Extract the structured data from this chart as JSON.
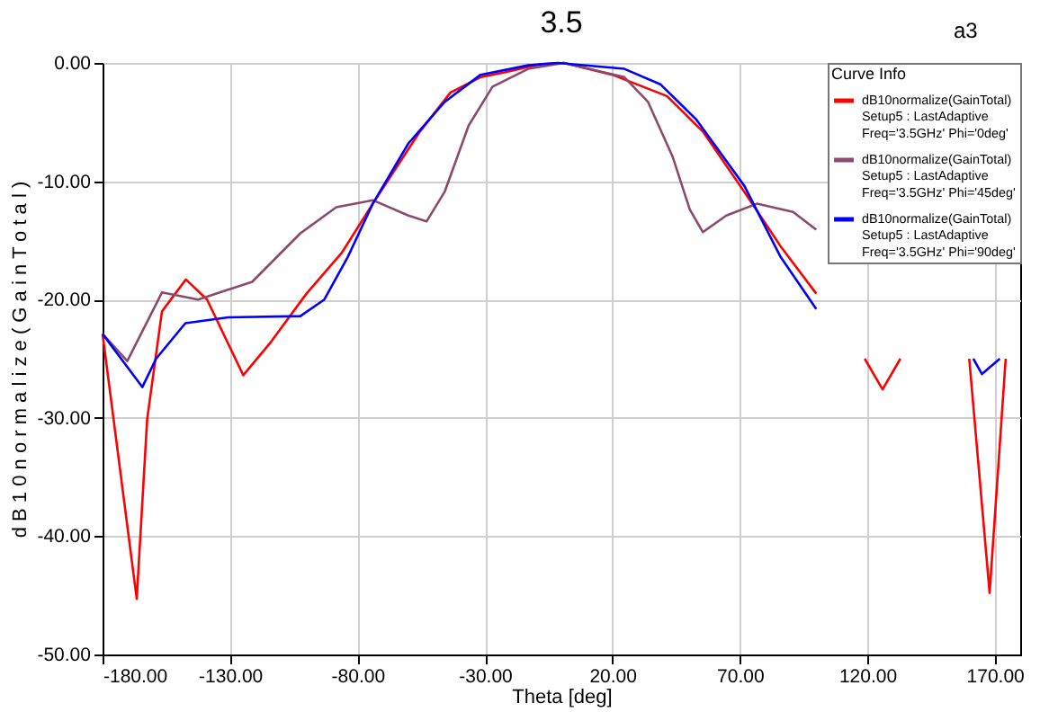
{
  "chart_data": {
    "type": "line",
    "title": "3.5",
    "xlabel": "Theta [deg]",
    "ylabel": "d B 1 0 n o r m a l i z e ( G a i n T o t a l )",
    "legend_title": "Curve Info",
    "legend": "top right",
    "grid": true,
    "line_style": "solid",
    "marker": "none",
    "xlim": [
      -180,
      180
    ],
    "ylim": [
      -50,
      0
    ],
    "xticks": [
      {
        "value": -180,
        "label": "-180.00"
      },
      {
        "value": -130,
        "label": "-130.00"
      },
      {
        "value": -80,
        "label": "-80.00"
      },
      {
        "value": -30,
        "label": "-30.00"
      },
      {
        "value": 20,
        "label": "20.00"
      },
      {
        "value": 70,
        "label": "70.00"
      },
      {
        "value": 120,
        "label": "120.00"
      },
      {
        "value": 170,
        "label": "170.00"
      }
    ],
    "yticks": [
      {
        "value": 0,
        "label": "0.00"
      },
      {
        "value": -10,
        "label": "-10.00"
      },
      {
        "value": -20,
        "label": "-20.00"
      },
      {
        "value": -30,
        "label": "-30.00"
      },
      {
        "value": -40,
        "label": "-40.00"
      },
      {
        "value": -50,
        "label": "-50.00"
      }
    ],
    "annotations": [
      "a3"
    ],
    "series": [
      {
        "name": "dB10normalize(GainTotal)\nSetup5 : LastAdaptive\nFreq='3.5GHz' Phi='0deg'",
        "color": "#ff0000",
        "x": [
          -180,
          -166.6,
          -162.5,
          -156.7,
          -147.3,
          -139,
          -124.8,
          -114,
          -100,
          -86,
          -74,
          -55.5,
          -43.5,
          -31.7,
          -22.3,
          -8,
          1,
          20,
          41.4,
          55.5,
          71.8,
          86,
          100,
          110,
          119,
          126,
          133,
          145,
          160,
          168,
          174.3
        ],
        "values": [
          -22.9,
          -45.3,
          -30.1,
          -21,
          -18.3,
          -20,
          -26.4,
          -23.6,
          -19.5,
          -16,
          -11.9,
          -5.8,
          -2.5,
          -1.2,
          -0.8,
          -0.1,
          0,
          -1,
          -2.8,
          -5.8,
          -10.9,
          -15.5,
          -19.5,
          null,
          -25,
          -27.6,
          -25,
          null,
          -25,
          -44.8,
          -25
        ]
      },
      {
        "name": "dB10normalize(GainTotal)\nSetup5 : LastAdaptive\nFreq='3.5GHz' Phi='45deg'",
        "color": "#8b4a6b",
        "x": [
          -180,
          -170.3,
          -156.7,
          -142.5,
          -121.3,
          -102.4,
          -88.3,
          -74,
          -60,
          -52.9,
          -45.8,
          -36.4,
          -27,
          -13,
          1,
          24.7,
          34,
          43.6,
          50.4,
          55.5,
          64.7,
          76.7,
          90.9,
          100
        ],
        "values": [
          -22.9,
          -25.2,
          -19.4,
          -20,
          -18.5,
          -14.4,
          -12.2,
          -11.6,
          -12.9,
          -13.4,
          -10.9,
          -5.3,
          -2,
          -0.5,
          0,
          -1.2,
          -3.3,
          -7.9,
          -12.4,
          -14.3,
          -12.9,
          -11.9,
          -12.6,
          -14.1
        ]
      },
      {
        "name": "dB10normalize(GainTotal)\nSetup5 : LastAdaptive\nFreq='3.5GHz' Phi='90deg'",
        "color": "#0000ff",
        "x": [
          -180,
          -164.4,
          -159,
          -147.5,
          -130.7,
          -102.4,
          -93,
          -83.8,
          -74,
          -60,
          -45.8,
          -31.7,
          -13,
          -1.4,
          24.7,
          38.8,
          53,
          71.8,
          86,
          100,
          110,
          161.6,
          165,
          172
        ],
        "values": [
          -22.9,
          -27.4,
          -25,
          -22,
          -21.5,
          -21.4,
          -20,
          -16.4,
          -11.9,
          -6.8,
          -3.3,
          -1,
          -0.2,
          0,
          -0.5,
          -1.8,
          -4.8,
          -10.4,
          -16.4,
          -20.8,
          null,
          -25,
          -26.3,
          -25
        ]
      }
    ]
  }
}
